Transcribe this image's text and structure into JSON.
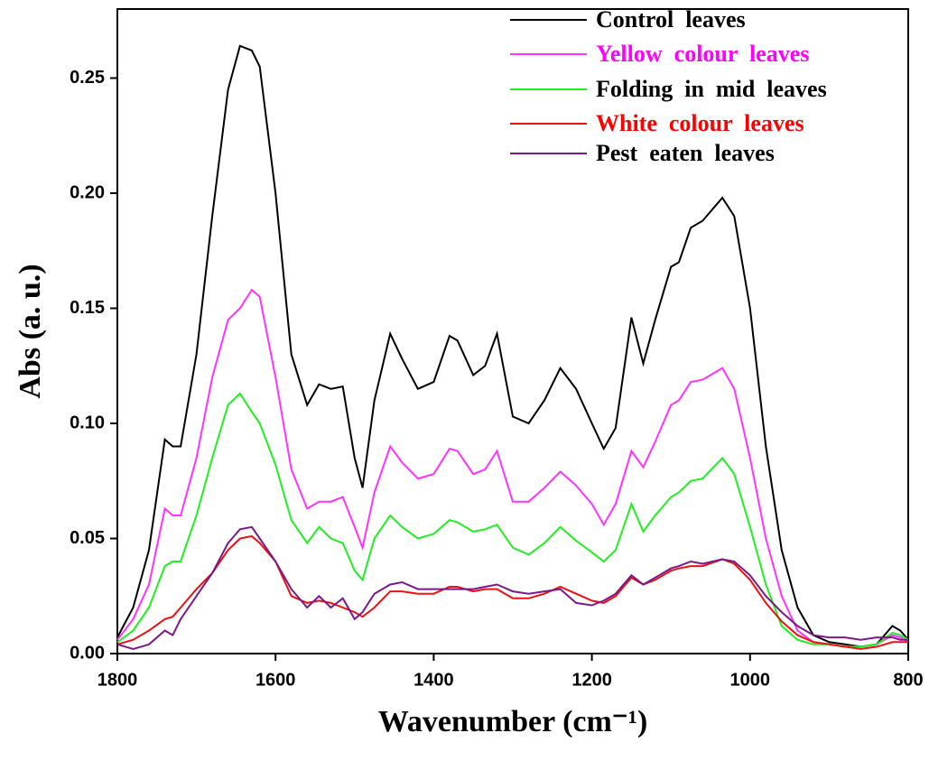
{
  "chart_data": {
    "type": "line",
    "x_label": "Wavenumber (cm⁻¹)",
    "y_label": "Abs  (a.  u.)",
    "xlim": [
      1800,
      800
    ],
    "ylim": [
      0,
      0.28
    ],
    "xticks": [
      1800,
      1600,
      1400,
      1200,
      1000,
      800
    ],
    "yticks": [
      {
        "value": 0,
        "label": "0.00"
      },
      0.05,
      {
        "value": 0.1,
        "label": "0.10"
      },
      0.15,
      {
        "value": 0.2,
        "label": "0.20"
      },
      0.25
    ],
    "legend": "top-right",
    "x": [
      1800,
      1780,
      1760,
      1740,
      1730,
      1720,
      1700,
      1680,
      1660,
      1645,
      1630,
      1620,
      1600,
      1580,
      1560,
      1545,
      1530,
      1515,
      1500,
      1490,
      1475,
      1455,
      1440,
      1420,
      1400,
      1380,
      1370,
      1350,
      1335,
      1320,
      1300,
      1280,
      1260,
      1240,
      1220,
      1200,
      1185,
      1170,
      1150,
      1135,
      1120,
      1100,
      1090,
      1075,
      1060,
      1035,
      1020,
      1000,
      980,
      960,
      940,
      920,
      900,
      880,
      860,
      840,
      820,
      810,
      800
    ],
    "series": [
      {
        "name": "Control  leaves",
        "color": "#000000",
        "label_color": "#000000",
        "values": [
          0.007,
          0.02,
          0.045,
          0.093,
          0.09,
          0.09,
          0.13,
          0.19,
          0.245,
          0.264,
          0.262,
          0.255,
          0.2,
          0.13,
          0.108,
          0.117,
          0.115,
          0.116,
          0.085,
          0.072,
          0.11,
          0.139,
          0.128,
          0.115,
          0.118,
          0.138,
          0.136,
          0.121,
          0.125,
          0.139,
          0.103,
          0.1,
          0.11,
          0.124,
          0.115,
          0.1,
          0.089,
          0.098,
          0.146,
          0.126,
          0.145,
          0.168,
          0.17,
          0.185,
          0.188,
          0.198,
          0.19,
          0.15,
          0.09,
          0.045,
          0.02,
          0.008,
          0.005,
          0.004,
          0.003,
          0.004,
          0.012,
          0.01,
          0.006
        ]
      },
      {
        "name": "Yellow  colour  leaves",
        "color": "#ff33ff",
        "label_color": "#ff00ff",
        "values": [
          0.006,
          0.015,
          0.03,
          0.063,
          0.06,
          0.06,
          0.085,
          0.12,
          0.145,
          0.15,
          0.158,
          0.155,
          0.12,
          0.08,
          0.063,
          0.066,
          0.066,
          0.068,
          0.055,
          0.046,
          0.07,
          0.09,
          0.083,
          0.076,
          0.078,
          0.089,
          0.088,
          0.078,
          0.08,
          0.088,
          0.066,
          0.066,
          0.072,
          0.079,
          0.073,
          0.065,
          0.056,
          0.065,
          0.088,
          0.081,
          0.092,
          0.108,
          0.11,
          0.118,
          0.119,
          0.124,
          0.115,
          0.085,
          0.05,
          0.025,
          0.01,
          0.005,
          0.004,
          0.003,
          0.003,
          0.004,
          0.008,
          0.007,
          0.005
        ]
      },
      {
        "name": "Folding  in  mid  leaves",
        "color": "#22ee22",
        "label_color": "#000000",
        "values": [
          0.005,
          0.01,
          0.02,
          0.038,
          0.04,
          0.04,
          0.06,
          0.085,
          0.108,
          0.113,
          0.105,
          0.1,
          0.082,
          0.058,
          0.048,
          0.055,
          0.05,
          0.048,
          0.036,
          0.032,
          0.05,
          0.06,
          0.055,
          0.05,
          0.052,
          0.058,
          0.057,
          0.053,
          0.054,
          0.056,
          0.046,
          0.043,
          0.048,
          0.055,
          0.049,
          0.044,
          0.04,
          0.045,
          0.065,
          0.053,
          0.06,
          0.068,
          0.07,
          0.075,
          0.076,
          0.085,
          0.078,
          0.055,
          0.03,
          0.012,
          0.006,
          0.004,
          0.004,
          0.003,
          0.003,
          0.004,
          0.009,
          0.008,
          0.006
        ]
      },
      {
        "name": "White  colour  leaves",
        "color": "#ee1111",
        "label_color": "#ff0000",
        "values": [
          0.004,
          0.006,
          0.01,
          0.015,
          0.016,
          0.02,
          0.028,
          0.035,
          0.045,
          0.05,
          0.051,
          0.048,
          0.04,
          0.025,
          0.022,
          0.023,
          0.022,
          0.02,
          0.018,
          0.016,
          0.02,
          0.027,
          0.027,
          0.026,
          0.026,
          0.029,
          0.029,
          0.027,
          0.028,
          0.028,
          0.024,
          0.024,
          0.026,
          0.029,
          0.026,
          0.023,
          0.022,
          0.025,
          0.033,
          0.03,
          0.032,
          0.036,
          0.037,
          0.038,
          0.038,
          0.041,
          0.039,
          0.032,
          0.022,
          0.014,
          0.008,
          0.005,
          0.004,
          0.003,
          0.002,
          0.003,
          0.005,
          0.005,
          0.005
        ]
      },
      {
        "name": "Pest  eaten  leaves",
        "color": "#7a1a8a",
        "label_color": "#000000",
        "values": [
          0.004,
          0.002,
          0.004,
          0.01,
          0.008,
          0.015,
          0.025,
          0.035,
          0.048,
          0.054,
          0.055,
          0.05,
          0.04,
          0.028,
          0.02,
          0.025,
          0.02,
          0.024,
          0.015,
          0.018,
          0.026,
          0.03,
          0.031,
          0.028,
          0.028,
          0.028,
          0.028,
          0.028,
          0.029,
          0.03,
          0.027,
          0.026,
          0.027,
          0.028,
          0.022,
          0.021,
          0.023,
          0.026,
          0.034,
          0.03,
          0.033,
          0.037,
          0.038,
          0.04,
          0.039,
          0.041,
          0.04,
          0.034,
          0.025,
          0.018,
          0.012,
          0.008,
          0.007,
          0.007,
          0.006,
          0.007,
          0.007,
          0.006,
          0.006
        ]
      }
    ]
  }
}
